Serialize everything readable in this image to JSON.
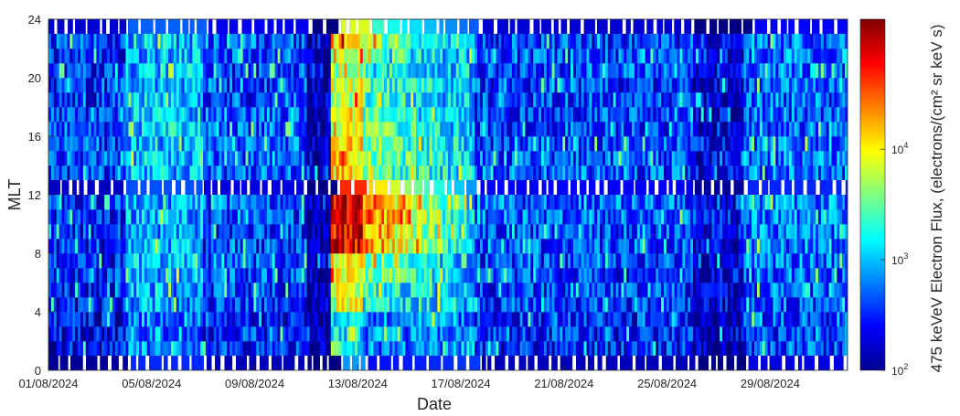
{
  "chart_data": {
    "type": "heatmap",
    "title": "",
    "xlabel": "Date",
    "ylabel": "MLT",
    "x_tick_labels": [
      "01/08/2024",
      "05/08/2024",
      "09/08/2024",
      "13/08/2024",
      "17/08/2024",
      "21/08/2024",
      "25/08/2024",
      "29/08/2024"
    ],
    "x_range": [
      "01/08/2024",
      "31/08/2024"
    ],
    "y_ticks": [
      0,
      4,
      8,
      12,
      16,
      20,
      24
    ],
    "y_tick_labels": [
      "0",
      "4",
      "8",
      "12",
      "16",
      "20",
      "24"
    ],
    "y_range": [
      0,
      24
    ],
    "colorbar": {
      "label": "475 keVeV Electron Flux, (electrons/(cm² sr keV s)",
      "scale": "log",
      "range": [
        100,
        150000
      ],
      "ticks": [
        {
          "value": 100,
          "base": "10",
          "exp": "2"
        },
        {
          "value": 1000,
          "base": "10",
          "exp": "3"
        },
        {
          "value": 10000,
          "base": "10",
          "exp": "4"
        }
      ],
      "colormap": "jet"
    },
    "missing_data_rows_mlt": [
      0,
      12,
      23
    ],
    "mlt_bands": [
      {
        "mlt": 2,
        "before_storm": 300,
        "storm_peak": 1500,
        "after_storm": 250
      },
      {
        "mlt": 4,
        "before_storm": 350,
        "storm_peak": 6000,
        "after_storm": 300
      },
      {
        "mlt": 6,
        "before_storm": 400,
        "storm_peak": 12000,
        "after_storm": 300
      },
      {
        "mlt": 8,
        "before_storm": 350,
        "storm_peak": 70000,
        "after_storm": 350
      },
      {
        "mlt": 10,
        "before_storm": 400,
        "storm_peak": 90000,
        "after_storm": 400
      },
      {
        "mlt": 14,
        "before_storm": 450,
        "storm_peak": 12000,
        "after_storm": 350
      },
      {
        "mlt": 16,
        "before_storm": 450,
        "storm_peak": 9000,
        "after_storm": 300
      },
      {
        "mlt": 18,
        "before_storm": 400,
        "storm_peak": 7000,
        "after_storm": 300
      },
      {
        "mlt": 20,
        "before_storm": 400,
        "storm_peak": 5000,
        "after_storm": 350
      },
      {
        "mlt": 22,
        "before_storm": 450,
        "storm_peak": 15000,
        "after_storm": 300
      }
    ],
    "events": [
      {
        "start": "04/08/2024",
        "end": "06/08/2024",
        "description_level": 900
      },
      {
        "start": "12/08/2024",
        "end": "17/08/2024",
        "description_level": 8000
      }
    ]
  }
}
